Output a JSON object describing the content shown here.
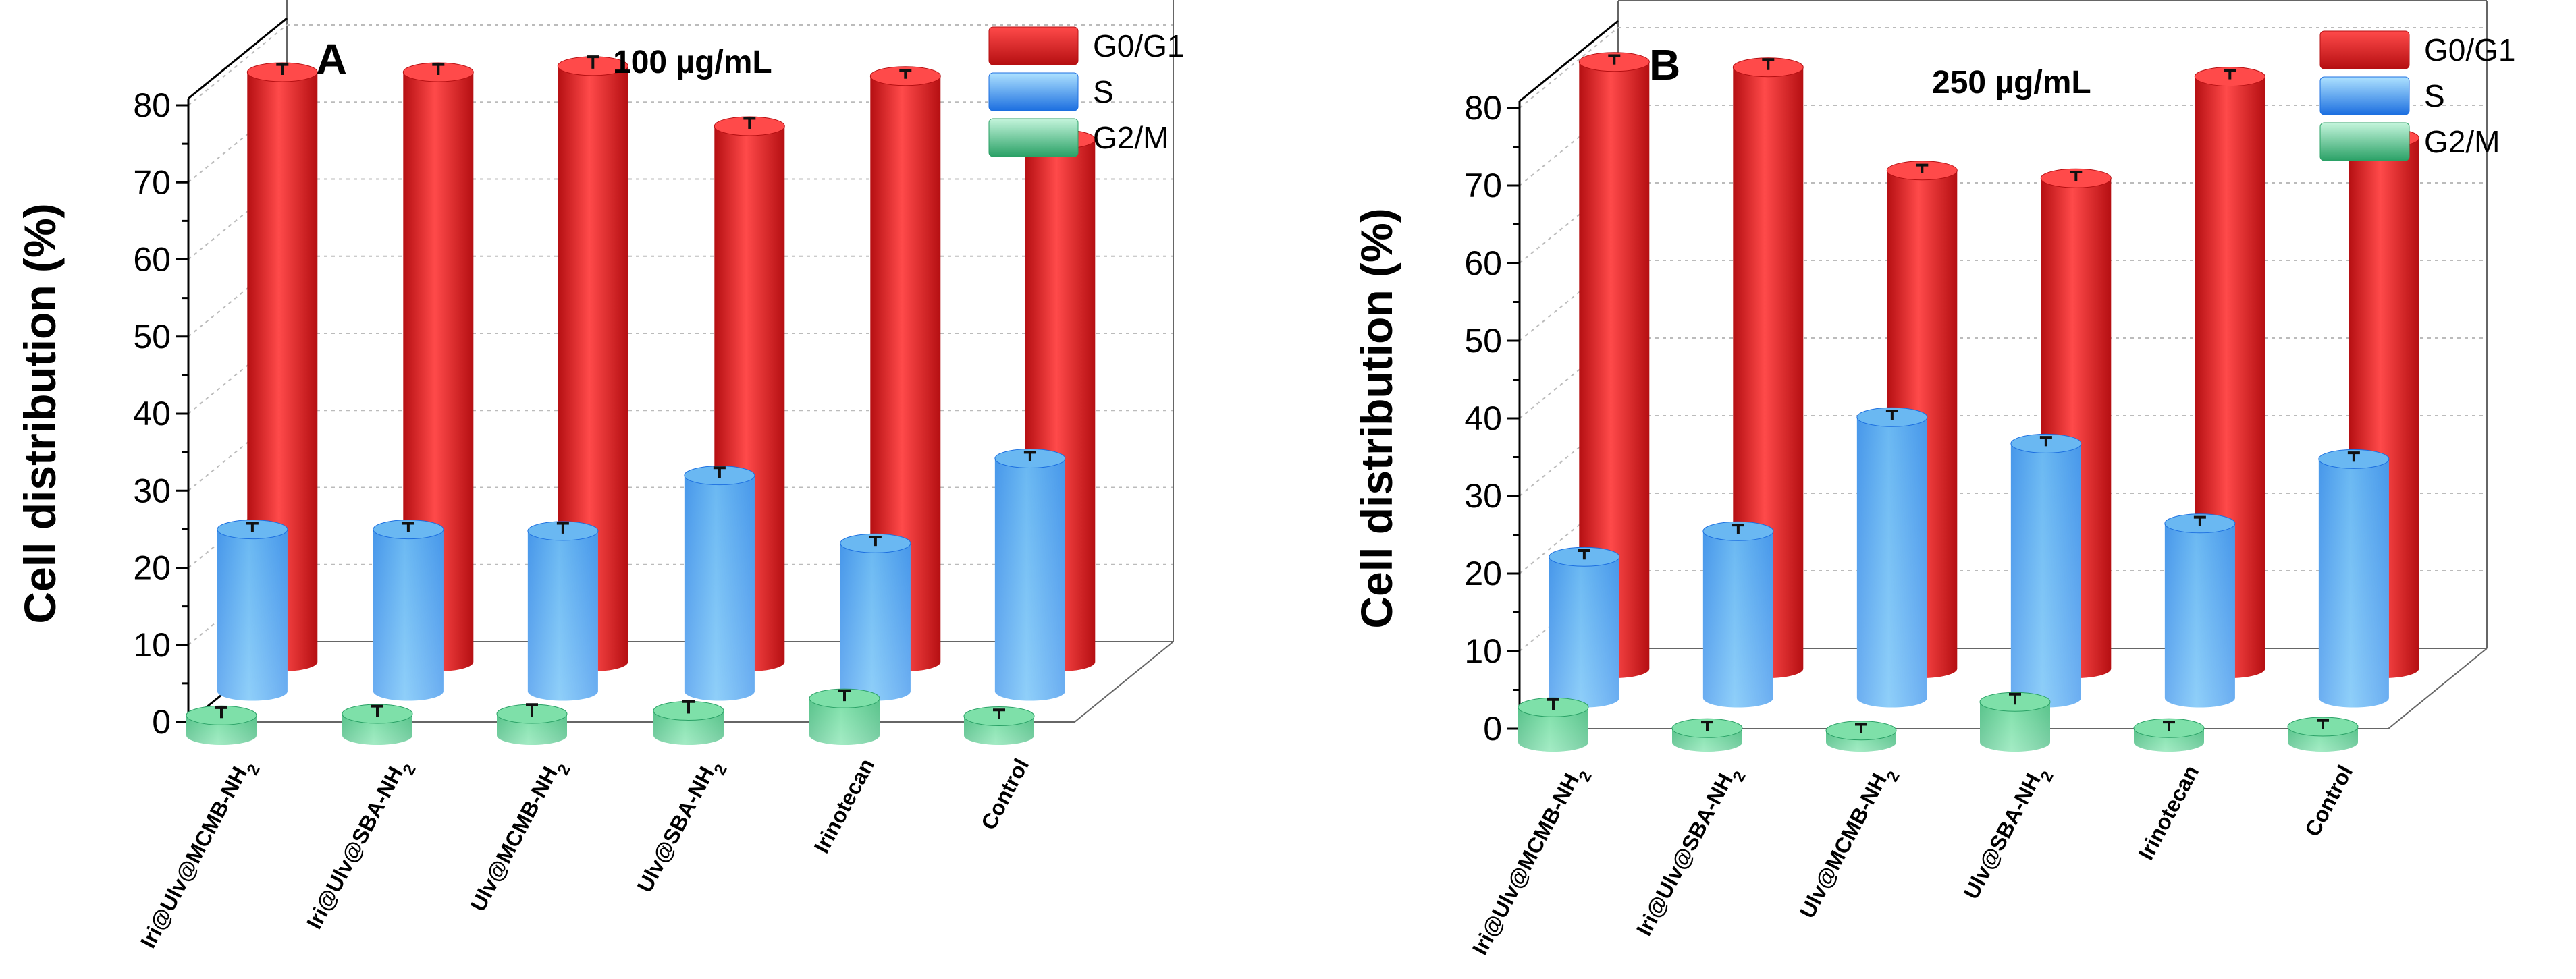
{
  "colors": {
    "G0/G1": [
      "#b50f12",
      "#ff4a4a",
      "#ff8080"
    ],
    "S": [
      "#1c6fe0",
      "#6ab8f2",
      "#aee2ff"
    ],
    "G2/M": [
      "#2aa166",
      "#7ee0a9",
      "#c4f5dc"
    ]
  },
  "chart_data": [
    {
      "type": "bar",
      "panel": "A",
      "title": "100 µg/mL",
      "ylabel": "Cell distribution (%)",
      "xlabel": "",
      "ylim": [
        0,
        80
      ],
      "yticks": [
        0,
        10,
        20,
        30,
        40,
        50,
        60,
        70,
        80
      ],
      "categories": [
        "Iri@Ulv@MCMB-NH2",
        "Iri@Ulv@SBA-NH2",
        "Ulv@MCMB-NH2",
        "Ulv@SBA-NH2",
        "Irinotecan",
        "Control"
      ],
      "legend": [
        "G0/G1",
        "S",
        "G2/M"
      ],
      "series": [
        {
          "name": "G0/G1",
          "values": [
            76.5,
            76.5,
            77.3,
            69.5,
            76.0,
            67.8
          ],
          "errors": [
            1.0,
            1.0,
            1.2,
            1.0,
            0.7,
            0.7
          ]
        },
        {
          "name": "S",
          "values": [
            21.0,
            21.0,
            20.8,
            28.0,
            19.2,
            30.2
          ],
          "errors": [
            0.8,
            0.8,
            1.0,
            1.0,
            0.8,
            0.8
          ]
        },
        {
          "name": "G2/M",
          "values": [
            2.6,
            2.8,
            2.8,
            3.2,
            4.8,
            2.5
          ],
          "errors": [
            1.0,
            1.0,
            1.2,
            1.2,
            1.0,
            0.8
          ]
        }
      ]
    },
    {
      "type": "bar",
      "panel": "B",
      "title": "250 µg/mL",
      "ylabel": "Cell distribution (%)",
      "xlabel": "",
      "ylim": [
        0,
        80
      ],
      "yticks": [
        0,
        10,
        20,
        30,
        40,
        50,
        60,
        70,
        80
      ],
      "categories": [
        "Iri@Ulv@MCMB-NH2",
        "Iri@Ulv@SBA-NH2",
        "Ulv@MCMB-NH2",
        "Ulv@SBA-NH2",
        "Irinotecan",
        "Control"
      ],
      "legend": [
        "G0/G1",
        "S",
        "G2/M"
      ],
      "series": [
        {
          "name": "G0/G1",
          "values": [
            78.2,
            77.5,
            64.2,
            63.2,
            76.3,
            68.4
          ],
          "errors": [
            0.8,
            1.0,
            0.7,
            0.8,
            0.8,
            0.8
          ]
        },
        {
          "name": "S",
          "values": [
            18.2,
            21.5,
            36.2,
            32.8,
            22.5,
            30.8
          ],
          "errors": [
            0.8,
            0.8,
            0.8,
            0.8,
            0.8,
            0.8
          ]
        },
        {
          "name": "G2/M",
          "values": [
            4.5,
            1.8,
            1.5,
            5.2,
            1.8,
            2.0
          ],
          "errors": [
            1.0,
            0.8,
            0.8,
            1.0,
            0.8,
            0.8
          ]
        }
      ]
    }
  ]
}
